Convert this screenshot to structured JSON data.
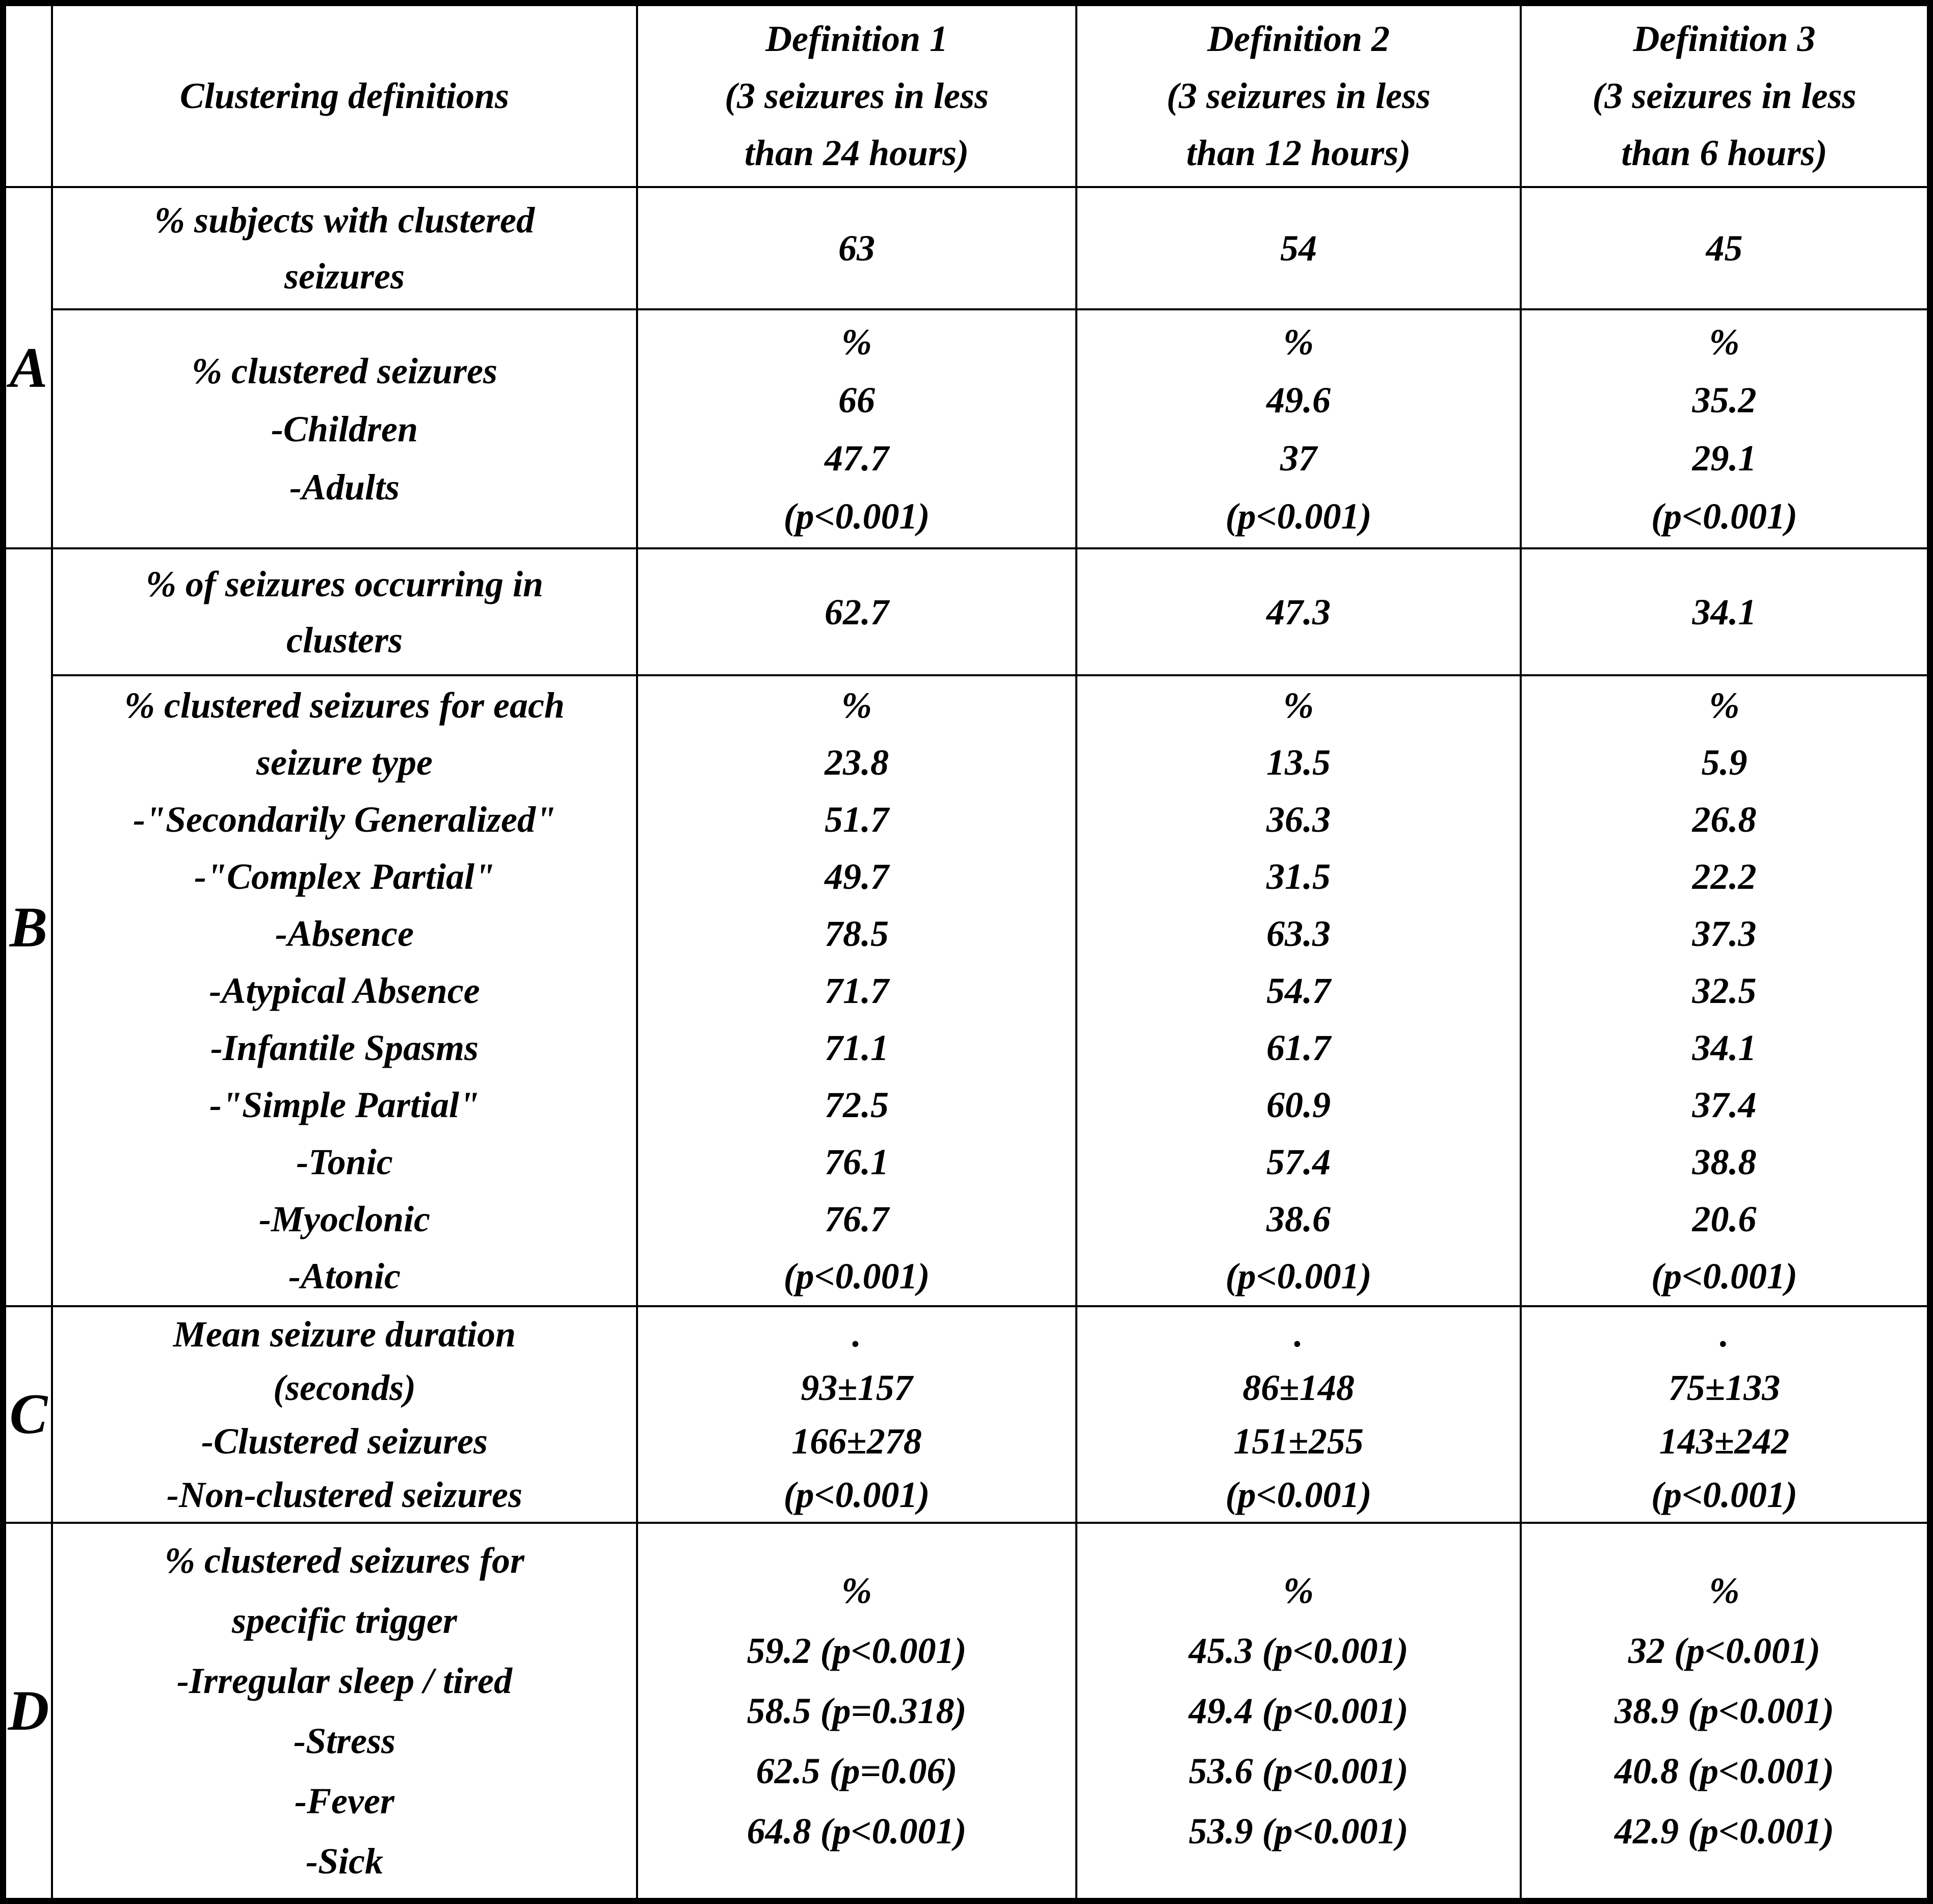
{
  "table": {
    "header": {
      "first_col": "Clustering definitions",
      "definitions": [
        {
          "lines": [
            "Definition 1",
            "(3 seizures in less",
            "than 24 hours)"
          ]
        },
        {
          "lines": [
            "Definition 2",
            "(3 seizures in less",
            "than 12 hours)"
          ]
        },
        {
          "lines": [
            "Definition 3",
            "(3 seizures in less",
            "than 6 hours)"
          ]
        }
      ]
    },
    "sections": [
      {
        "label": "A",
        "rows": [
          {
            "header_lines": [
              "% subjects with clustered",
              "seizures"
            ],
            "cells": [
              [
                "63"
              ],
              [
                "54"
              ],
              [
                "45"
              ]
            ]
          },
          {
            "header_lines": [
              "% clustered seizures",
              "-Children",
              "-Adults"
            ],
            "cells": [
              [
                "%",
                "66",
                "47.7",
                "(p<0.001)"
              ],
              [
                "%",
                "49.6",
                "37",
                "(p<0.001)"
              ],
              [
                "%",
                "35.2",
                "29.1",
                "(p<0.001)"
              ]
            ]
          }
        ]
      },
      {
        "label": "B",
        "rows": [
          {
            "header_lines": [
              "% of seizures occurring in",
              "clusters"
            ],
            "cells": [
              [
                "62.7"
              ],
              [
                "47.3"
              ],
              [
                "34.1"
              ]
            ]
          },
          {
            "header_lines": [
              "% clustered seizures for each",
              "seizure type",
              "-\"Secondarily Generalized\"",
              "-\"Complex Partial\"",
              "-Absence",
              "-Atypical Absence",
              "-Infantile Spasms",
              "-\"Simple Partial\"",
              "-Tonic",
              "-Myoclonic",
              "-Atonic"
            ],
            "cells": [
              [
                "%",
                "23.8",
                "51.7",
                "49.7",
                "78.5",
                "71.7",
                "71.1",
                "72.5",
                "76.1",
                "76.7",
                "(p<0.001)"
              ],
              [
                "%",
                "13.5",
                "36.3",
                "31.5",
                "63.3",
                "54.7",
                "61.7",
                "60.9",
                "57.4",
                "38.6",
                "(p<0.001)"
              ],
              [
                "%",
                "5.9",
                "26.8",
                "22.2",
                "37.3",
                "32.5",
                "34.1",
                "37.4",
                "38.8",
                "20.6",
                "(p<0.001)"
              ]
            ]
          }
        ]
      },
      {
        "label": "C",
        "rows": [
          {
            "header_lines": [
              "Mean seizure duration",
              "(seconds)",
              "-Clustered seizures",
              "-Non-clustered seizures"
            ],
            "cells": [
              [
                ".",
                "93±157",
                "166±278",
                "(p<0.001)"
              ],
              [
                ".",
                "86±148",
                "151±255",
                "(p<0.001)"
              ],
              [
                ".",
                "75±133",
                "143±242",
                "(p<0.001)"
              ]
            ]
          }
        ]
      },
      {
        "label": "D",
        "rows": [
          {
            "header_lines": [
              "% clustered seizures for",
              "specific trigger",
              "-Irregular sleep / tired",
              "-Stress",
              "-Fever",
              "-Sick"
            ],
            "cells": [
              [
                "%",
                "59.2 (p<0.001)",
                "58.5 (p=0.318)",
                "62.5 (p=0.06)",
                "64.8 (p<0.001)"
              ],
              [
                "%",
                "45.3 (p<0.001)",
                "49.4 (p<0.001)",
                "53.6 (p<0.001)",
                "53.9 (p<0.001)"
              ],
              [
                "%",
                "32 (p<0.001)",
                "38.9 (p<0.001)",
                "40.8 (p<0.001)",
                "42.9 (p<0.001)"
              ]
            ]
          }
        ]
      }
    ]
  }
}
